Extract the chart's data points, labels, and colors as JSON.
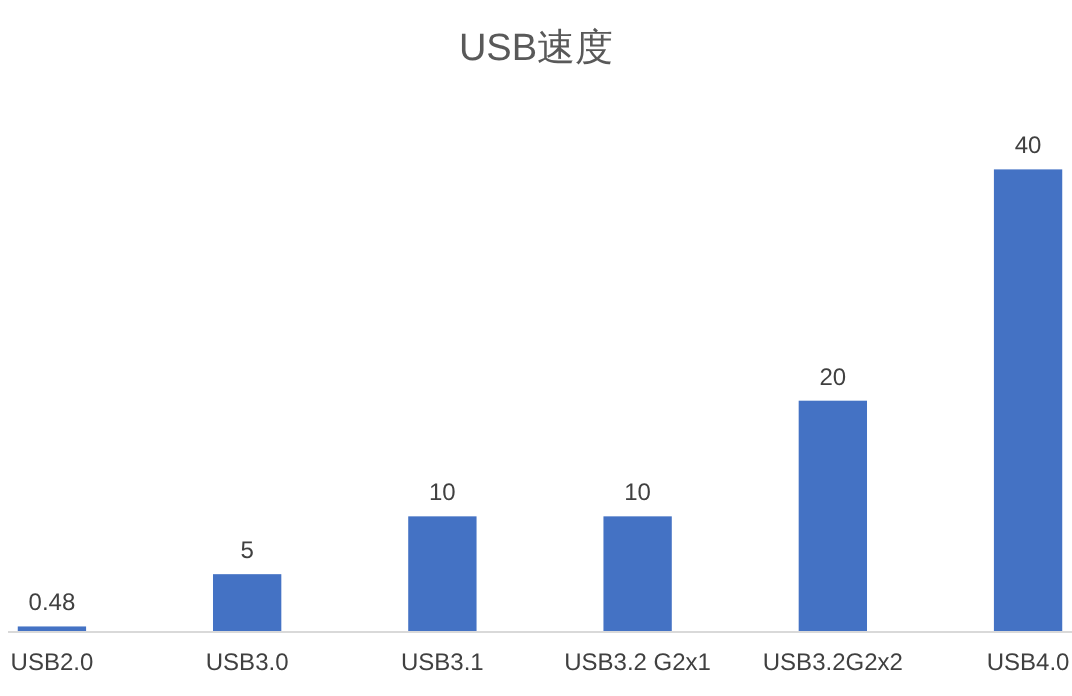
{
  "chart_data": {
    "type": "bar",
    "title": "USB速度",
    "categories": [
      "USB2.0",
      "USB3.0",
      "USB3.1",
      "USB3.2 G2x1",
      "USB3.2G2x2",
      "USB4.0"
    ],
    "values": [
      0.48,
      5,
      10,
      10,
      20,
      40
    ],
    "color": "#4472c4",
    "data_labels": true
  }
}
